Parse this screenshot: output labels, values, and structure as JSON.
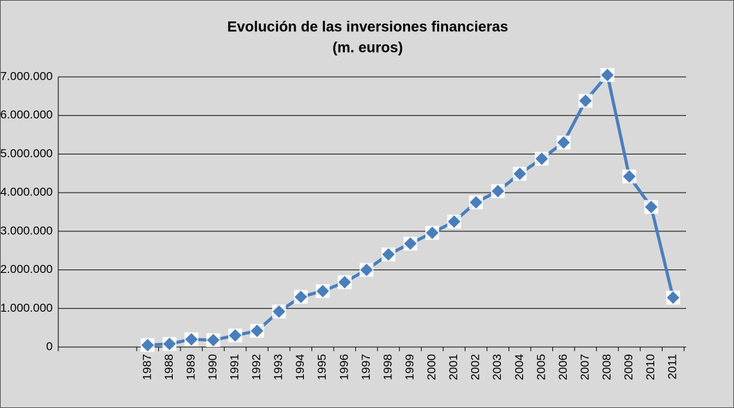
{
  "chart_data": {
    "type": "line",
    "title": "Evolución de  las inversiones financieras",
    "subtitle": "(m. euros)",
    "categories": [
      "1987",
      "1988",
      "1989",
      "1990",
      "1991",
      "1992",
      "1993",
      "1994",
      "1995",
      "1996",
      "1997",
      "1998",
      "1999",
      "2000",
      "2001",
      "2002",
      "2003",
      "2004",
      "2005",
      "2006",
      "2007",
      "2008",
      "2009",
      "2010",
      "2011"
    ],
    "series": [
      {
        "name": "Inversiones financieras",
        "color": "#4a7ebb",
        "values": [
          50000,
          80000,
          200000,
          180000,
          300000,
          420000,
          920000,
          1300000,
          1450000,
          1680000,
          2000000,
          2400000,
          2680000,
          2960000,
          3250000,
          3750000,
          4040000,
          4490000,
          4880000,
          5300000,
          6380000,
          7050000,
          4420000,
          3630000,
          1280000
        ]
      }
    ],
    "ylim": [
      0,
      7000000
    ],
    "yticks": [
      0,
      {
        "value": 1000000,
        "label": "1.000.000"
      },
      {
        "value": 2000000,
        "label": "2.000.000"
      },
      {
        "value": 3000000,
        "label": "3.000.000"
      },
      {
        "value": 4000000,
        "label": "4.000.000"
      },
      {
        "value": 5000000,
        "label": "5.000.000"
      },
      {
        "value": 6000000,
        "label": "6.000.000"
      },
      {
        "value": 7000000,
        "label": "7.000.000"
      }
    ],
    "grid": true
  }
}
